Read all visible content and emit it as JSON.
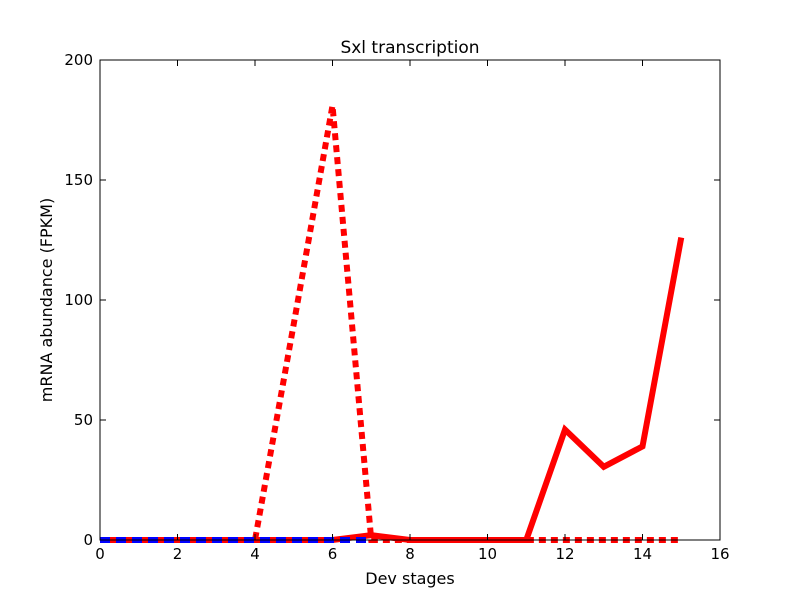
{
  "chart_data": {
    "type": "line",
    "title": "Sxl transcription",
    "xlabel": "Dev stages",
    "ylabel": "mRNA abundance (FPKM)",
    "xlim": [
      0,
      16
    ],
    "ylim": [
      0,
      200
    ],
    "xticks": [
      0,
      2,
      4,
      6,
      8,
      10,
      12,
      14,
      16
    ],
    "yticks": [
      0,
      50,
      100,
      150,
      200
    ],
    "grid": false,
    "series": [
      {
        "color": "#ff0000",
        "style": "solid",
        "x": [
          0,
          1,
          2,
          3,
          4,
          5,
          6,
          7,
          8,
          9,
          10,
          11,
          12,
          13,
          14,
          15
        ],
        "y": [
          0,
          0,
          0,
          0,
          0,
          0,
          0,
          2,
          0,
          0,
          0,
          0,
          46,
          30.5,
          39,
          126
        ]
      },
      {
        "color": "#ff0000",
        "style": "dotted",
        "x": [
          0,
          1,
          2,
          3,
          4,
          5,
          6,
          7,
          8,
          9,
          10,
          11,
          12,
          13,
          14,
          15
        ],
        "y": [
          0,
          0,
          0,
          0,
          0,
          90,
          181,
          0,
          0,
          0,
          0,
          0,
          0,
          0,
          0,
          0
        ]
      },
      {
        "color": "#0000ff",
        "style": "dashed",
        "x": [
          0,
          1,
          2,
          3,
          4,
          5,
          6,
          7
        ],
        "y": [
          0,
          0,
          0,
          0,
          0,
          0,
          0,
          0
        ]
      }
    ]
  }
}
